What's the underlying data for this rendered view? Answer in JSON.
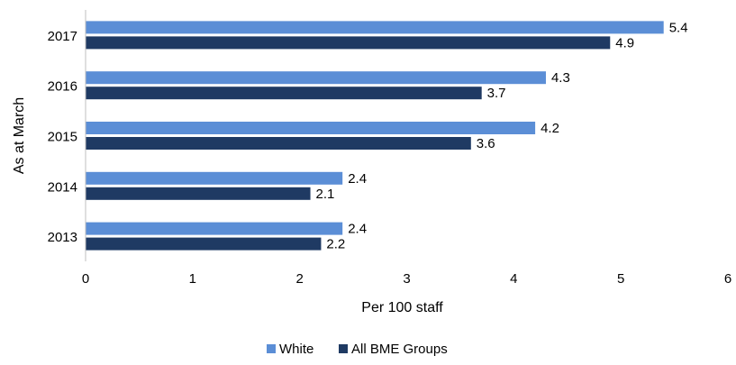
{
  "chart_data": {
    "type": "bar",
    "orientation": "horizontal",
    "categories": [
      "2017",
      "2016",
      "2015",
      "2014",
      "2013"
    ],
    "series": [
      {
        "name": "White",
        "color": "#5b8ed6",
        "values": [
          5.4,
          4.3,
          4.2,
          2.4,
          2.4
        ],
        "labels": [
          "5.4",
          "4.3",
          "4.2",
          "2.4",
          "2.4"
        ]
      },
      {
        "name": "All BME Groups",
        "color": "#1f3a63",
        "values": [
          4.9,
          3.7,
          3.6,
          2.1,
          2.2
        ],
        "labels": [
          "4.9",
          "3.7",
          "3.6",
          "2.1",
          "2.2"
        ]
      }
    ],
    "xlabel": "Per 100 staff",
    "ylabel": "As at March",
    "xlim": [
      0,
      6
    ],
    "xticks": [
      "0",
      "1",
      "2",
      "3",
      "4",
      "5",
      "6"
    ],
    "grid": false,
    "legend_position": "bottom"
  }
}
